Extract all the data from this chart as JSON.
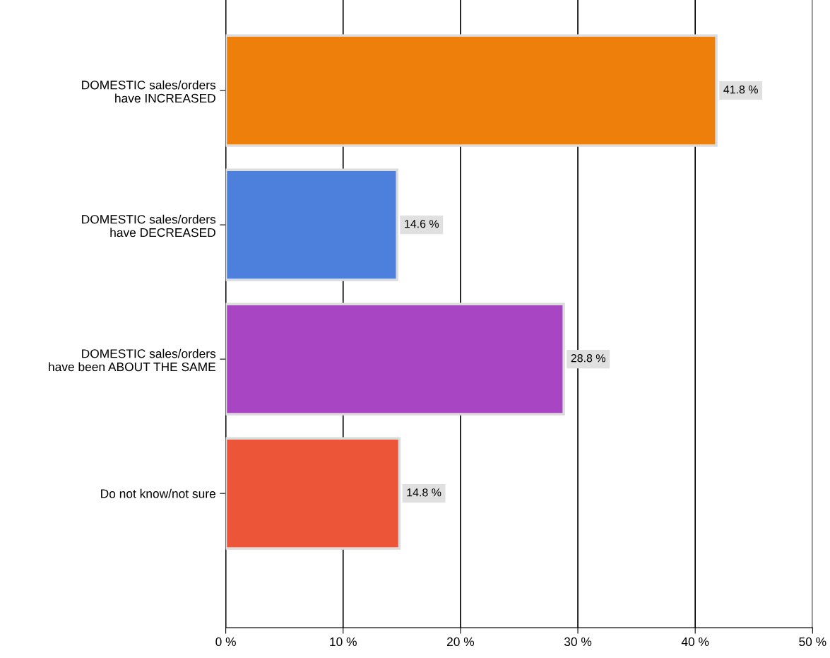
{
  "chart_data": {
    "type": "bar",
    "orientation": "horizontal",
    "categories": [
      "DOMESTIC sales/orders\nhave INCREASED",
      "DOMESTIC sales/orders\nhave DECREASED",
      "DOMESTIC sales/orders\nhave been ABOUT THE SAME",
      "Do not know/not sure"
    ],
    "values": [
      41.8,
      14.6,
      28.8,
      14.8
    ],
    "colors": [
      "#ee7f0a",
      "#4d80dc",
      "#a845c2",
      "#ec5538"
    ],
    "value_labels": [
      "41.8 %",
      "14.6 %",
      "28.8 %",
      "14.8 %"
    ],
    "xlim": [
      0,
      50
    ],
    "xticks": [
      {
        "value": 0,
        "label": "0 %"
      },
      {
        "value": 10,
        "label": "10 %"
      },
      {
        "value": 20,
        "label": "20 %"
      },
      {
        "value": 30,
        "label": "30 %"
      },
      {
        "value": 40,
        "label": "40 %"
      },
      {
        "value": 50,
        "label": "50 %"
      }
    ],
    "grid": "x",
    "legend": false
  }
}
